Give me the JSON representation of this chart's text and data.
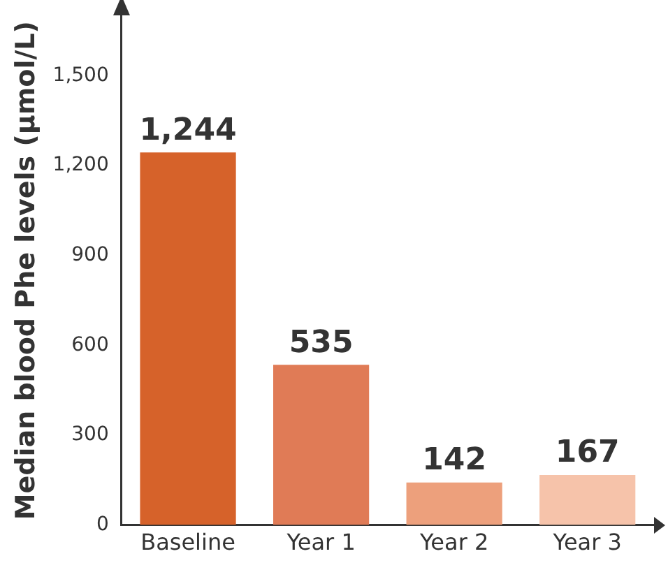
{
  "chart_data": {
    "type": "bar",
    "ylabel": "Median blood Phe levels (µmol/L)",
    "categories": [
      "Baseline",
      "Year 1",
      "Year 2",
      "Year 3"
    ],
    "values": [
      1244,
      535,
      142,
      167
    ],
    "colors": [
      "#d6622a",
      "#e07b56",
      "#eda07c",
      "#f6c3aa"
    ],
    "value_labels": [
      "1,244",
      "535",
      "142",
      "167"
    ],
    "ylim": [
      0,
      1700
    ],
    "yticks": [
      0,
      {
        "value": 300,
        "label": "300"
      },
      {
        "value": 600,
        "label": "600"
      },
      {
        "value": 900,
        "label": "900"
      },
      {
        "value": 1200,
        "label": "1,200"
      },
      {
        "value": 1500,
        "label": "1,500"
      }
    ],
    "grid": false,
    "legend": false
  }
}
